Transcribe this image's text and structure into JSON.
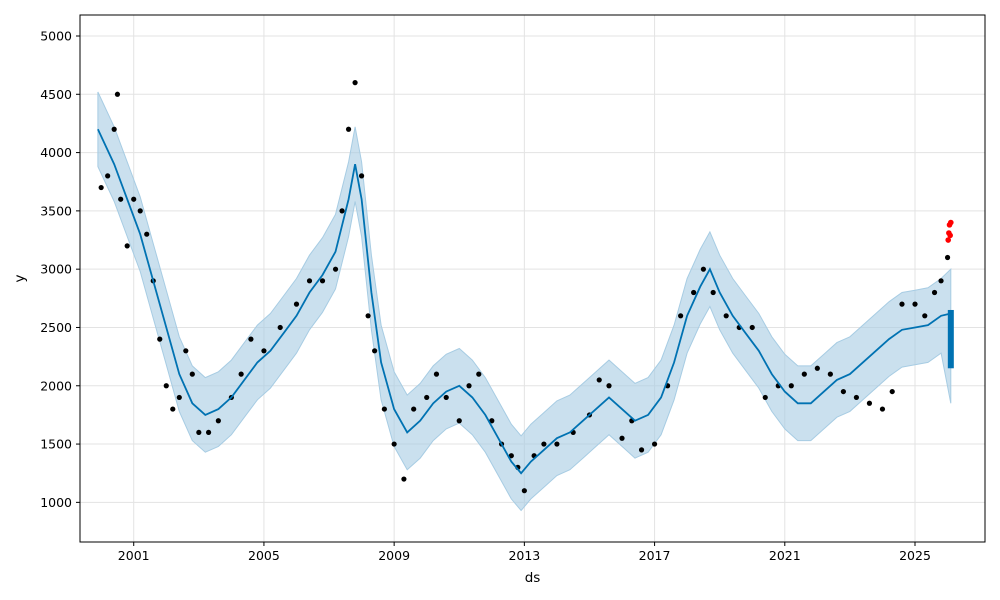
{
  "chart_data": {
    "type": "line",
    "title": "",
    "xlabel": "ds",
    "ylabel": "y",
    "xlim": [
      1999.35,
      2027.15
    ],
    "ylim": [
      660,
      5180
    ],
    "grid": true,
    "legend": "none",
    "x_ticks": [
      {
        "value": 2001,
        "label": "2001"
      },
      {
        "value": 2005,
        "label": "2005"
      },
      {
        "value": 2009,
        "label": "2009"
      },
      {
        "value": 2013,
        "label": "2013"
      },
      {
        "value": 2017,
        "label": "2017"
      },
      {
        "value": 2021,
        "label": "2021"
      },
      {
        "value": 2025,
        "label": "2025"
      }
    ],
    "y_ticks": [
      {
        "value": 1000,
        "label": "1000"
      },
      {
        "value": 1500,
        "label": "1500"
      },
      {
        "value": 2000,
        "label": "2000"
      },
      {
        "value": 2500,
        "label": "2500"
      },
      {
        "value": 3000,
        "label": "3000"
      },
      {
        "value": 3500,
        "label": "3500"
      },
      {
        "value": 4000,
        "label": "4000"
      },
      {
        "value": 4500,
        "label": "4500"
      },
      {
        "value": 5000,
        "label": "5000"
      }
    ],
    "colors": {
      "observed": "#000000",
      "forecast": "#0072B2",
      "interval": "#A7CCE3",
      "highlight": "#ff0000"
    },
    "series": [
      {
        "role": "observed",
        "style": "dots",
        "x": [
          2000.0,
          2000.2,
          2000.4,
          2000.5,
          2000.6,
          2000.8,
          2001.0,
          2001.2,
          2001.4,
          2001.6,
          2001.8,
          2002.0,
          2002.2,
          2002.4,
          2002.6,
          2002.8,
          2003.0,
          2003.3,
          2003.6,
          2004.0,
          2004.3,
          2004.6,
          2005.0,
          2005.5,
          2006.0,
          2006.4,
          2006.8,
          2007.2,
          2007.4,
          2007.6,
          2007.8,
          2008.0,
          2008.2,
          2008.4,
          2008.7,
          2009.0,
          2009.3,
          2009.6,
          2010.0,
          2010.3,
          2010.6,
          2011.0,
          2011.3,
          2011.6,
          2012.0,
          2012.3,
          2012.6,
          2012.8,
          2013.0,
          2013.3,
          2013.6,
          2014.0,
          2014.5,
          2015.0,
          2015.3,
          2015.6,
          2016.0,
          2016.3,
          2016.6,
          2017.0,
          2017.4,
          2017.8,
          2018.2,
          2018.5,
          2018.8,
          2019.2,
          2019.6,
          2020.0,
          2020.4,
          2020.8,
          2021.2,
          2021.6,
          2022.0,
          2022.4,
          2022.8,
          2023.2,
          2023.6,
          2024.0,
          2024.3,
          2024.6,
          2025.0,
          2025.3,
          2025.6,
          2025.8,
          2026.0
        ],
        "y": [
          3700,
          3800,
          4200,
          4500,
          3600,
          3200,
          3600,
          3500,
          3300,
          2900,
          2400,
          2000,
          1800,
          1900,
          2300,
          2100,
          1600,
          1600,
          1700,
          1900,
          2100,
          2400,
          2300,
          2500,
          2700,
          2900,
          2900,
          3000,
          3500,
          4200,
          4600,
          3800,
          2600,
          2300,
          1800,
          1500,
          1200,
          1800,
          1900,
          2100,
          1900,
          1700,
          2000,
          2100,
          1700,
          1500,
          1400,
          1300,
          1100,
          1400,
          1500,
          1500,
          1600,
          1750,
          2050,
          2000,
          1550,
          1700,
          1450,
          1500,
          2000,
          2600,
          2800,
          3000,
          2800,
          2600,
          2500,
          2500,
          1900,
          2000,
          2000,
          2100,
          2150,
          2100,
          1950,
          1900,
          1850,
          1800,
          1950,
          2700,
          2700,
          2600,
          2800,
          2900,
          3100
        ]
      },
      {
        "role": "highlight",
        "style": "dots",
        "x": [
          2026.02,
          2026.04,
          2026.06,
          2026.08,
          2026.1
        ],
        "y": [
          3250,
          3310,
          3380,
          3290,
          3400
        ]
      },
      {
        "role": "forecast",
        "style": "line",
        "x": [
          1999.9,
          2000.4,
          2000.8,
          2001.2,
          2001.6,
          2002.0,
          2002.4,
          2002.8,
          2003.2,
          2003.6,
          2004.0,
          2004.4,
          2004.8,
          2005.2,
          2005.6,
          2006.0,
          2006.4,
          2006.8,
          2007.2,
          2007.6,
          2007.8,
          2008.0,
          2008.3,
          2008.6,
          2009.0,
          2009.4,
          2009.8,
          2010.2,
          2010.6,
          2011.0,
          2011.4,
          2011.8,
          2012.2,
          2012.6,
          2012.9,
          2013.2,
          2013.6,
          2014.0,
          2014.4,
          2014.8,
          2015.2,
          2015.6,
          2016.0,
          2016.4,
          2016.8,
          2017.2,
          2017.6,
          2018.0,
          2018.4,
          2018.7,
          2019.0,
          2019.4,
          2019.8,
          2020.2,
          2020.6,
          2021.0,
          2021.4,
          2021.8,
          2022.2,
          2022.6,
          2023.0,
          2023.4,
          2023.8,
          2024.2,
          2024.6,
          2025.0,
          2025.4,
          2025.8,
          2026.1
        ],
        "y": [
          4200,
          3900,
          3600,
          3300,
          2900,
          2500,
          2100,
          1850,
          1750,
          1800,
          1900,
          2050,
          2200,
          2300,
          2450,
          2600,
          2800,
          2950,
          3150,
          3600,
          3900,
          3600,
          2800,
          2200,
          1800,
          1600,
          1700,
          1850,
          1950,
          2000,
          1900,
          1750,
          1550,
          1350,
          1250,
          1350,
          1450,
          1550,
          1600,
          1700,
          1800,
          1900,
          1800,
          1700,
          1750,
          1900,
          2200,
          2600,
          2850,
          3000,
          2800,
          2600,
          2450,
          2300,
          2100,
          1950,
          1850,
          1850,
          1950,
          2050,
          2100,
          2200,
          2300,
          2400,
          2480,
          2500,
          2520,
          2600,
          2620
        ]
      },
      {
        "role": "interval",
        "style": "band",
        "x": [
          1999.9,
          2000.4,
          2000.8,
          2001.2,
          2001.6,
          2002.0,
          2002.4,
          2002.8,
          2003.2,
          2003.6,
          2004.0,
          2004.4,
          2004.8,
          2005.2,
          2005.6,
          2006.0,
          2006.4,
          2006.8,
          2007.2,
          2007.6,
          2007.8,
          2008.0,
          2008.3,
          2008.6,
          2009.0,
          2009.4,
          2009.8,
          2010.2,
          2010.6,
          2011.0,
          2011.4,
          2011.8,
          2012.2,
          2012.6,
          2012.9,
          2013.2,
          2013.6,
          2014.0,
          2014.4,
          2014.8,
          2015.2,
          2015.6,
          2016.0,
          2016.4,
          2016.8,
          2017.2,
          2017.6,
          2018.0,
          2018.4,
          2018.7,
          2019.0,
          2019.4,
          2019.8,
          2020.2,
          2020.6,
          2021.0,
          2021.4,
          2021.8,
          2022.2,
          2022.6,
          2023.0,
          2023.4,
          2023.8,
          2024.2,
          2024.6,
          2025.0,
          2025.4,
          2025.8,
          2026.1
        ],
        "lower": [
          3880,
          3580,
          3280,
          2980,
          2580,
          2180,
          1780,
          1530,
          1430,
          1480,
          1580,
          1730,
          1880,
          1980,
          2130,
          2280,
          2480,
          2630,
          2830,
          3280,
          3580,
          3280,
          2480,
          1880,
          1480,
          1280,
          1380,
          1530,
          1630,
          1680,
          1580,
          1430,
          1230,
          1030,
          930,
          1030,
          1130,
          1230,
          1280,
          1380,
          1480,
          1580,
          1480,
          1380,
          1430,
          1580,
          1880,
          2280,
          2530,
          2680,
          2480,
          2280,
          2130,
          1980,
          1780,
          1630,
          1530,
          1530,
          1630,
          1730,
          1780,
          1880,
          1980,
          2080,
          2160,
          2180,
          2200,
          2280,
          1850
        ],
        "upper": [
          4520,
          4220,
          3920,
          3620,
          3220,
          2820,
          2420,
          2170,
          2070,
          2120,
          2220,
          2370,
          2520,
          2620,
          2770,
          2920,
          3120,
          3270,
          3470,
          3920,
          4220,
          3920,
          3120,
          2520,
          2120,
          1920,
          2020,
          2170,
          2270,
          2320,
          2220,
          2070,
          1870,
          1670,
          1570,
          1670,
          1770,
          1870,
          1920,
          2020,
          2120,
          2220,
          2120,
          2020,
          2070,
          2220,
          2520,
          2920,
          3170,
          3320,
          3120,
          2920,
          2770,
          2620,
          2420,
          2270,
          2170,
          2170,
          2270,
          2370,
          2420,
          2520,
          2620,
          2720,
          2800,
          2820,
          2840,
          2920,
          3000
        ]
      },
      {
        "role": "forecast-spread",
        "style": "vertical-bar",
        "x": [
          2026.1
        ],
        "lower": [
          2150
        ],
        "upper": [
          2650
        ]
      }
    ]
  }
}
